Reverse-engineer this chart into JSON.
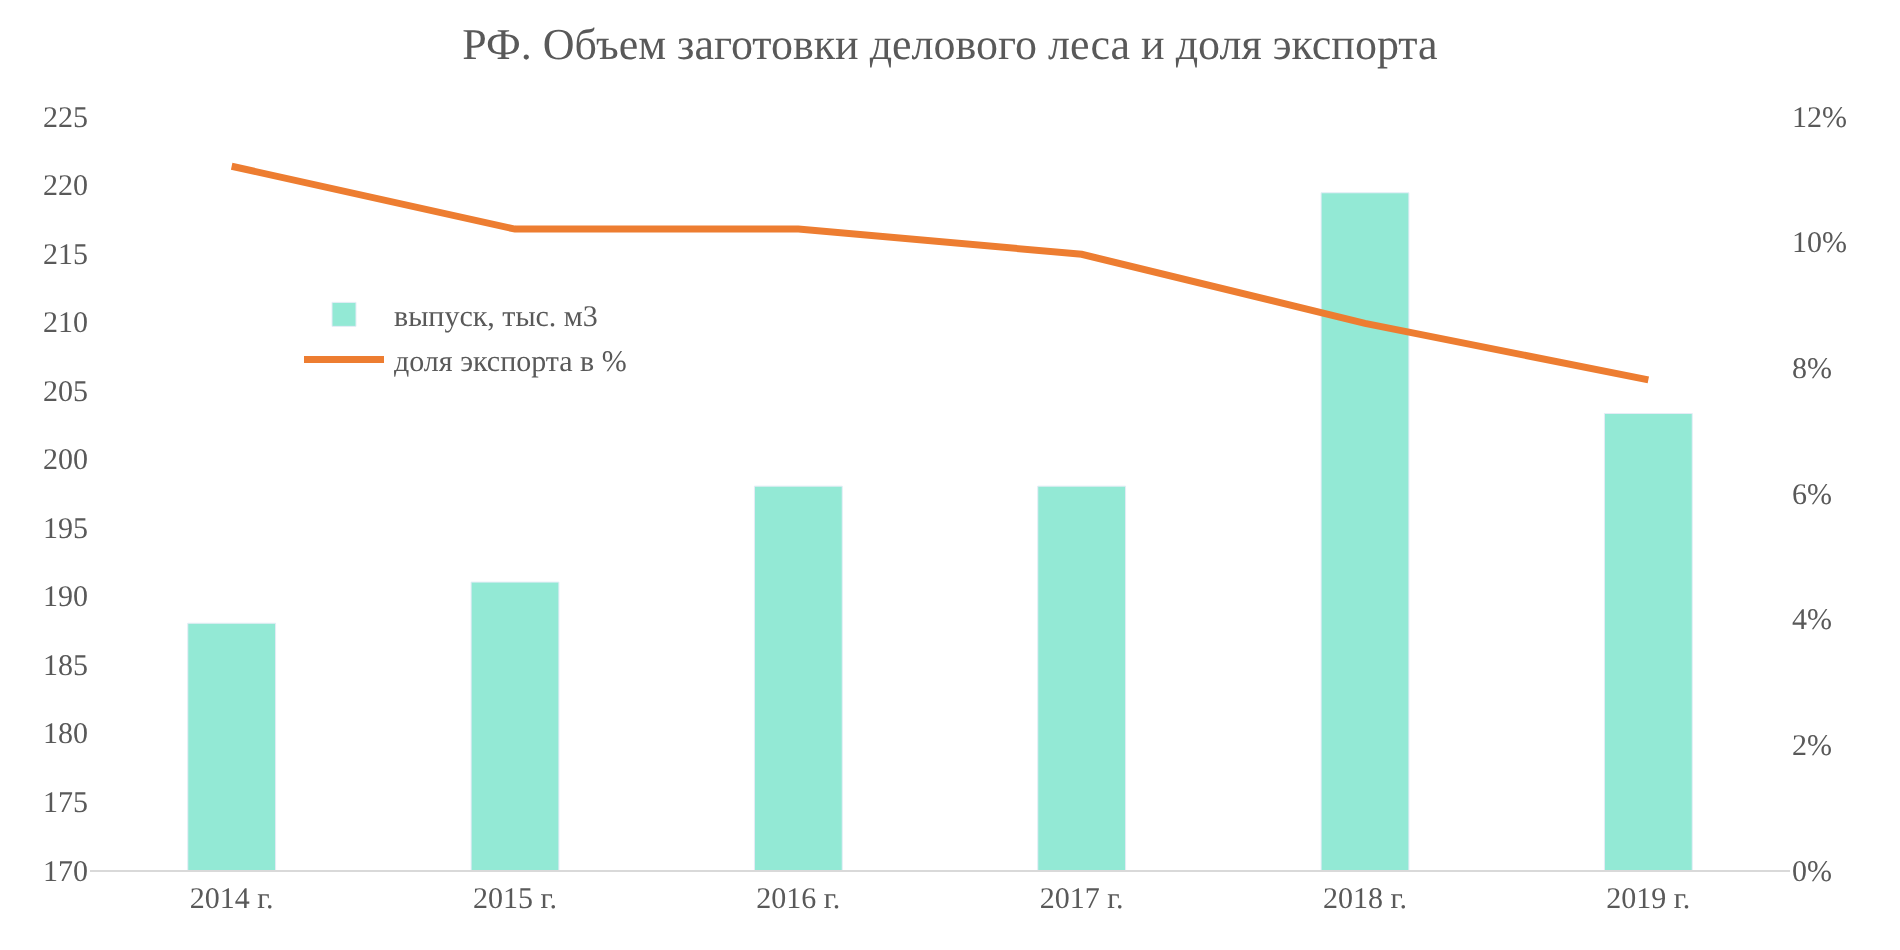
{
  "chart_data": {
    "type": "bar",
    "title": "РФ. Объем заготовки делового леса и доля экспорта",
    "categories": [
      "2014 г.",
      "2015 г.",
      "2016 г.",
      "2017 г.",
      "2018 г.",
      "2019 г."
    ],
    "series": [
      {
        "name": "выпуск, тыс. м3",
        "color": "#93e9d5",
        "values": [
          188,
          191,
          198,
          198,
          219.4,
          203.3
        ]
      },
      {
        "name": "доля экспорта в %",
        "type": "line",
        "axis": "y2",
        "color": "#ed7d31",
        "marker": "none",
        "line_style": "solid",
        "values": [
          11.2,
          10.2,
          10.2,
          9.8,
          8.7,
          7.8
        ]
      }
    ],
    "ylim": [
      170,
      225
    ],
    "yticks": [
      170,
      175,
      180,
      185,
      190,
      195,
      200,
      205,
      210,
      215,
      220,
      225
    ],
    "y2lim": [
      0,
      12
    ],
    "y2ticks": [
      {
        "value": 0,
        "label": "0%"
      },
      {
        "value": 2,
        "label": "2%"
      },
      {
        "value": 4,
        "label": "4%"
      },
      {
        "value": 6,
        "label": "6%"
      },
      {
        "value": 8,
        "label": "8%"
      },
      {
        "value": 10,
        "label": "10%"
      },
      {
        "value": 12,
        "label": "12%"
      }
    ],
    "grid": false,
    "legend": "top left"
  }
}
